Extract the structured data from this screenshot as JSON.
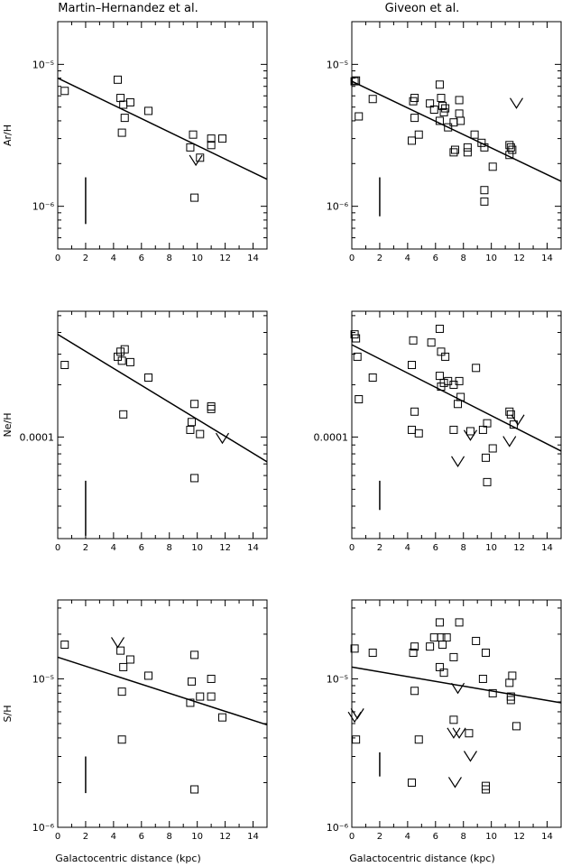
{
  "column_titles": [
    "Martin–Hernandez et al.",
    "Giveon et al."
  ],
  "x_axis_label": "Galactocentric distance (kpc)",
  "x_ticks": [
    "0",
    "2",
    "4",
    "6",
    "8",
    "10",
    "12",
    "14"
  ],
  "chart_data": [
    {
      "type": "scatter",
      "panel": "ArH-MH",
      "xlabel": "",
      "ylabel": "Ar/H",
      "xlim": [
        0,
        15
      ],
      "ylim": [
        5e-07,
        2e-05
      ],
      "yscale": "log",
      "ytick_values": [
        1e-06,
        1e-05
      ],
      "ytick_labels": [
        "10⁻⁶",
        "10⁻⁵"
      ],
      "points": [
        [
          0.5,
          6.5e-06
        ],
        [
          4.3,
          7.8e-06
        ],
        [
          4.5,
          5.8e-06
        ],
        [
          4.7,
          5.2e-06
        ],
        [
          4.6,
          3.3e-06
        ],
        [
          4.8,
          4.2e-06
        ],
        [
          5.2,
          5.4e-06
        ],
        [
          6.5,
          4.7e-06
        ],
        [
          9.5,
          2.6e-06
        ],
        [
          9.7,
          3.2e-06
        ],
        [
          10.2,
          2.2e-06
        ],
        [
          11,
          3e-06
        ],
        [
          11,
          2.7e-06
        ],
        [
          11.8,
          3e-06
        ],
        [
          9.8,
          1.15e-06
        ]
      ],
      "upper_limits": [
        [
          9.9,
          2.1e-06
        ]
      ],
      "fit_line": [
        [
          0,
          8e-06
        ],
        [
          15,
          1.55e-06
        ]
      ],
      "error_bar": {
        "x": 2,
        "y": [
          7.5e-07,
          1.6e-06
        ]
      }
    },
    {
      "type": "scatter",
      "panel": "ArH-GV",
      "xlabel": "",
      "ylabel": "",
      "xlim": [
        0,
        15
      ],
      "ylim": [
        5e-07,
        2e-05
      ],
      "yscale": "log",
      "ytick_values": [
        1e-06,
        1e-05
      ],
      "ytick_labels": [
        "10⁻⁶",
        "10⁻⁵"
      ],
      "points": [
        [
          0.2,
          7.6e-06
        ],
        [
          0.3,
          7.7e-06
        ],
        [
          0.5,
          4.3e-06
        ],
        [
          1.5,
          5.7e-06
        ],
        [
          4.4,
          5.5e-06
        ],
        [
          4.5,
          5.8e-06
        ],
        [
          4.5,
          4.2e-06
        ],
        [
          4.3,
          2.9e-06
        ],
        [
          4.8,
          3.2e-06
        ],
        [
          5.6,
          5.3e-06
        ],
        [
          5.9,
          4.8e-06
        ],
        [
          6.3,
          7.2e-06
        ],
        [
          6.4,
          5.8e-06
        ],
        [
          6.5,
          5.1e-06
        ],
        [
          6.7,
          4.9e-06
        ],
        [
          6.6,
          4.6e-06
        ],
        [
          6.3,
          4e-06
        ],
        [
          6.9,
          3.6e-06
        ],
        [
          7.3,
          3.9e-06
        ],
        [
          7.4,
          2.5e-06
        ],
        [
          7.3,
          2.4e-06
        ],
        [
          7.7,
          5.6e-06
        ],
        [
          7.7,
          4.5e-06
        ],
        [
          7.8,
          4e-06
        ],
        [
          8.3,
          2.6e-06
        ],
        [
          8.3,
          2.4e-06
        ],
        [
          8.8,
          3.2e-06
        ],
        [
          9.3,
          2.8e-06
        ],
        [
          9.5,
          2.6e-06
        ],
        [
          9.5,
          1.3e-06
        ],
        [
          9.5,
          1.08e-06
        ],
        [
          10.1,
          1.9e-06
        ],
        [
          11.3,
          2.7e-06
        ],
        [
          11.4,
          2.6e-06
        ],
        [
          11.5,
          2.5e-06
        ],
        [
          11.3,
          2.3e-06
        ]
      ],
      "upper_limits": [
        [
          11.8,
          5.3e-06
        ]
      ],
      "fit_line": [
        [
          0,
          7.6e-06
        ],
        [
          15,
          1.5e-06
        ]
      ],
      "error_bar": {
        "x": 2,
        "y": [
          8.5e-07,
          1.6e-06
        ]
      }
    },
    {
      "type": "scatter",
      "panel": "NeH-MH",
      "xlabel": "",
      "ylabel": "Ne/H",
      "xlim": [
        0,
        15
      ],
      "ylim": [
        2.6e-05,
        0.00053
      ],
      "yscale": "log",
      "ytick_values": [
        0.0001
      ],
      "ytick_labels": [
        "0.0001"
      ],
      "points": [
        [
          0.5,
          0.00026
        ],
        [
          4.3,
          0.00029
        ],
        [
          4.5,
          0.00031
        ],
        [
          4.6,
          0.000275
        ],
        [
          4.8,
          0.00032
        ],
        [
          4.7,
          0.000135
        ],
        [
          5.2,
          0.00027
        ],
        [
          6.5,
          0.00022
        ],
        [
          9.5,
          0.00011
        ],
        [
          9.6,
          0.000122
        ],
        [
          9.8,
          0.000155
        ],
        [
          10.2,
          0.000104
        ],
        [
          11,
          0.00015
        ],
        [
          11,
          0.000145
        ],
        [
          9.8,
          5.8e-05
        ]
      ],
      "upper_limits": [
        [
          11.8,
          9.8e-05
        ]
      ],
      "fit_line": [
        [
          0,
          0.00039
        ],
        [
          15,
          7.2e-05
        ]
      ],
      "error_bar": {
        "x": 2,
        "y": [
          2.7e-05,
          5.6e-05
        ]
      }
    },
    {
      "type": "scatter",
      "panel": "NeH-GV",
      "xlabel": "",
      "ylabel": "",
      "xlim": [
        0,
        15
      ],
      "ylim": [
        2.6e-05,
        0.00053
      ],
      "yscale": "log",
      "ytick_values": [
        0.0001
      ],
      "ytick_labels": [
        "0.0001"
      ],
      "points": [
        [
          0.2,
          0.00039
        ],
        [
          0.3,
          0.00037
        ],
        [
          0.4,
          0.00029
        ],
        [
          0.5,
          0.000165
        ],
        [
          1.5,
          0.00022
        ],
        [
          4.4,
          0.00036
        ],
        [
          4.3,
          0.00026
        ],
        [
          4.5,
          0.00014
        ],
        [
          4.3,
          0.00011
        ],
        [
          4.8,
          0.000105
        ],
        [
          5.7,
          0.00035
        ],
        [
          6.3,
          0.00042
        ],
        [
          6.4,
          0.00031
        ],
        [
          6.7,
          0.00029
        ],
        [
          6.3,
          0.000225
        ],
        [
          6.6,
          0.000205
        ],
        [
          6.4,
          0.000195
        ],
        [
          6.9,
          0.00021
        ],
        [
          7.3,
          0.0002
        ],
        [
          7.3,
          0.00011
        ],
        [
          7.7,
          0.00021
        ],
        [
          7.8,
          0.00017
        ],
        [
          7.6,
          0.000155
        ],
        [
          8.5,
          0.000108
        ],
        [
          8.9,
          0.00025
        ],
        [
          9.4,
          0.00011
        ],
        [
          9.7,
          0.00012
        ],
        [
          9.6,
          7.6e-05
        ],
        [
          9.7,
          5.5e-05
        ],
        [
          10.1,
          8.6e-05
        ],
        [
          11.3,
          0.00014
        ],
        [
          11.4,
          0.000135
        ],
        [
          11.6,
          0.000118
        ]
      ],
      "upper_limits": [
        [
          11.9,
          0.000125
        ],
        [
          8.5,
          0.000102
        ],
        [
          7.6,
          7.2e-05
        ],
        [
          11.3,
          9.4e-05
        ]
      ],
      "fit_line": [
        [
          0,
          0.00034
        ],
        [
          15,
          8.3e-05
        ]
      ],
      "error_bar": {
        "x": 2,
        "y": [
          3.8e-05,
          5.6e-05
        ]
      }
    },
    {
      "type": "scatter",
      "panel": "SH-MH",
      "xlabel": "",
      "ylabel": "S/H",
      "xlim": [
        0,
        15
      ],
      "ylim": [
        1e-06,
        3.4e-05
      ],
      "yscale": "log",
      "ytick_values": [
        1e-06,
        1e-05
      ],
      "ytick_labels": [
        "10⁻⁶",
        "10⁻⁵"
      ],
      "points": [
        [
          0.5,
          1.7e-05
        ],
        [
          4.5,
          1.55e-05
        ],
        [
          4.6,
          8.2e-06
        ],
        [
          4.7,
          1.2e-05
        ],
        [
          4.6,
          3.9e-06
        ],
        [
          5.2,
          1.35e-05
        ],
        [
          6.5,
          1.05e-05
        ],
        [
          9.5,
          6.9e-06
        ],
        [
          9.6,
          9.6e-06
        ],
        [
          9.8,
          1.45e-05
        ],
        [
          10.2,
          7.6e-06
        ],
        [
          11,
          1e-05
        ],
        [
          11,
          7.6e-06
        ],
        [
          11.8,
          5.5e-06
        ],
        [
          9.8,
          1.8e-06
        ]
      ],
      "upper_limits": [
        [
          4.3,
          1.75e-05
        ]
      ],
      "fit_line": [
        [
          0,
          1.4e-05
        ],
        [
          15,
          4.9e-06
        ]
      ],
      "error_bar": {
        "x": 2,
        "y": [
          1.7e-06,
          3e-06
        ]
      }
    },
    {
      "type": "scatter",
      "panel": "SH-GV",
      "xlabel": "",
      "ylabel": "",
      "xlim": [
        0,
        15
      ],
      "ylim": [
        1e-06,
        3.4e-05
      ],
      "yscale": "log",
      "ytick_values": [
        1e-06,
        1e-05
      ],
      "ytick_labels": [
        "10⁻⁶",
        "10⁻⁵"
      ],
      "points": [
        [
          0.2,
          1.6e-05
        ],
        [
          0.3,
          3.9e-06
        ],
        [
          1.5,
          1.5e-05
        ],
        [
          4.4,
          1.5e-05
        ],
        [
          4.5,
          1.65e-05
        ],
        [
          4.5,
          8.3e-06
        ],
        [
          4.3,
          2e-06
        ],
        [
          4.8,
          3.9e-06
        ],
        [
          5.6,
          1.65e-05
        ],
        [
          5.9,
          1.9e-05
        ],
        [
          6.3,
          2.4e-05
        ],
        [
          6.4,
          1.9e-05
        ],
        [
          6.5,
          1.7e-05
        ],
        [
          6.8,
          1.9e-05
        ],
        [
          6.3,
          1.2e-05
        ],
        [
          6.6,
          1.1e-05
        ],
        [
          7.3,
          1.4e-05
        ],
        [
          7.3,
          5.3e-06
        ],
        [
          7.7,
          2.4e-05
        ],
        [
          8.9,
          1.8e-05
        ],
        [
          9.4,
          1e-05
        ],
        [
          9.6,
          1.5e-05
        ],
        [
          9.6,
          1.9e-06
        ],
        [
          9.6,
          1.8e-06
        ],
        [
          10.1,
          8e-06
        ],
        [
          11.3,
          9.4e-06
        ],
        [
          11.4,
          7.6e-06
        ],
        [
          11.4,
          7.2e-06
        ],
        [
          11.5,
          1.05e-05
        ],
        [
          11.8,
          4.8e-06
        ],
        [
          8.4,
          4.3e-06
        ]
      ],
      "upper_limits": [
        [
          0.4,
          5.8e-06
        ],
        [
          0.2,
          5.5e-06
        ],
        [
          7.6,
          8.6e-06
        ],
        [
          7.3,
          4.3e-06
        ],
        [
          7.7,
          4.3e-06
        ],
        [
          8.5,
          3e-06
        ],
        [
          7.4,
          2e-06
        ]
      ],
      "fit_line": [
        [
          0,
          1.2e-05
        ],
        [
          15,
          6.9e-06
        ]
      ],
      "error_bar": {
        "x": 2,
        "y": [
          2.2e-06,
          3.2e-06
        ]
      }
    }
  ]
}
